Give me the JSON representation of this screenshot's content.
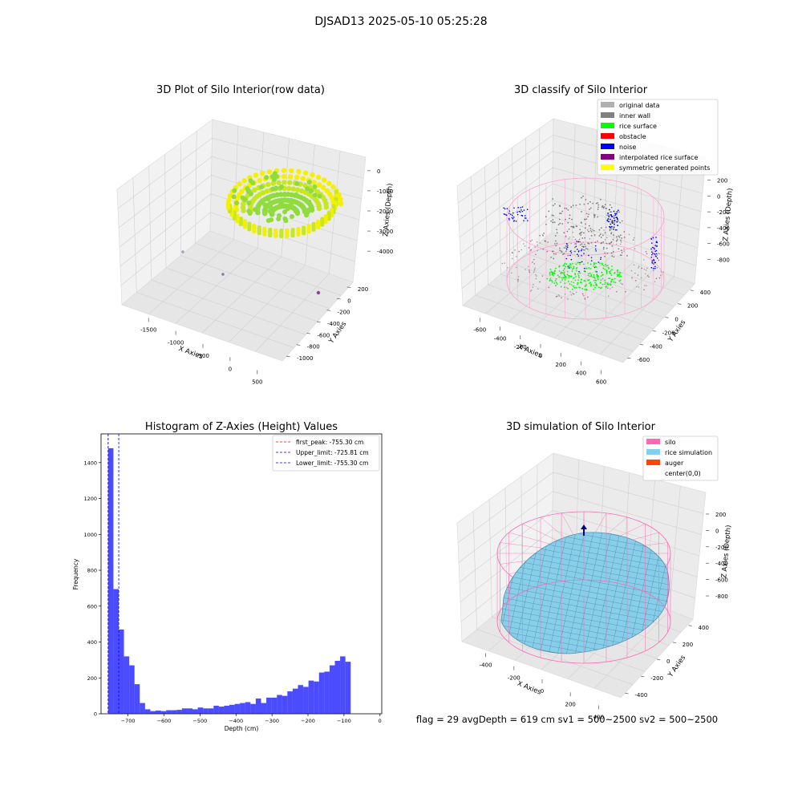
{
  "suptitle": "DJSAD13 2025-05-10 05:25:28",
  "status_line": "flag = 29  avgDepth = 619 cm  sv1 = 500~2500  sv2 = 500~2500",
  "chart_data": [
    {
      "id": "raw",
      "type": "scatter",
      "title": "3D Plot of Silo Interior(row data)",
      "xlabel": "X Axies",
      "ylabel": "Y Axies",
      "zlabel": "Z Axies (Depth)",
      "x_ticks": [
        "-1500",
        "-1000",
        "-500",
        "0",
        "500"
      ],
      "y_ticks": [
        "200",
        "0",
        "-200",
        "-400",
        "-600",
        "-800",
        "-1000"
      ],
      "z_ticks": [
        "0",
        "-1000",
        "-2000",
        "-3000",
        "-4000"
      ],
      "colors": [
        "#f5f000",
        "#8fdc3c",
        "#c7e81f"
      ]
    },
    {
      "id": "classify",
      "type": "scatter",
      "title": "3D classify of Silo Interior",
      "xlabel": "X Axies",
      "ylabel": "Y Axies",
      "zlabel": "Z Axies (Depth)",
      "x_ticks": [
        "-600",
        "-400",
        "-200",
        "0",
        "200",
        "400",
        "600"
      ],
      "y_ticks": [
        "400",
        "200",
        "0",
        "-200",
        "-400",
        "-600"
      ],
      "z_ticks": [
        "200",
        "0",
        "-200",
        "-400",
        "-600",
        "-800"
      ],
      "legend": [
        {
          "label": "original data",
          "color": "#b0b0b0"
        },
        {
          "label": "inner wall",
          "color": "#808080"
        },
        {
          "label": "rice surface",
          "color": "#00ff00"
        },
        {
          "label": "obstacle",
          "color": "#ff0000"
        },
        {
          "label": "noise",
          "color": "#0000ff"
        },
        {
          "label": "interpolated rice surface",
          "color": "#800080"
        },
        {
          "label": "symmetric generated points",
          "color": "#ffff00"
        }
      ]
    },
    {
      "id": "histogram",
      "type": "bar",
      "title": "Histogram of Z-Axies (Height) Values",
      "xlabel": "Depth (cm)",
      "ylabel": "Frequency",
      "xlim": [
        -775,
        5
      ],
      "ylim": [
        0,
        1560
      ],
      "x_ticks": [
        -700,
        -600,
        -500,
        -400,
        -300,
        -200,
        -100,
        0
      ],
      "y_ticks": [
        0,
        200,
        400,
        600,
        800,
        1000,
        1200,
        1400
      ],
      "bin_start": -755.3,
      "bin_width": 14.65,
      "counts": [
        1480,
        695,
        470,
        320,
        270,
        165,
        60,
        25,
        15,
        18,
        15,
        20,
        20,
        22,
        30,
        30,
        25,
        35,
        30,
        30,
        45,
        40,
        45,
        50,
        55,
        60,
        65,
        55,
        85,
        60,
        90,
        90,
        105,
        100,
        125,
        140,
        160,
        150,
        185,
        180,
        230,
        235,
        270,
        295,
        320,
        290
      ],
      "bar_color": "#0000ff",
      "lines": [
        {
          "label": "first_peak: -755.30 cm",
          "value": -755.3,
          "color": "#ff0000"
        },
        {
          "label": "Upper_limit: -725.81 cm",
          "value": -725.81,
          "color": "#0000ff"
        },
        {
          "label": "Lower_limit: -755.30 cm",
          "value": -755.3,
          "color": "#0000ff"
        }
      ]
    },
    {
      "id": "simulation",
      "type": "surface",
      "title": "3D simulation of Silo Interior",
      "xlabel": "X Axies",
      "ylabel": "Y Axies",
      "zlabel": "Z Axies (Depth)",
      "x_ticks": [
        "-400",
        "-200",
        "0",
        "200",
        "400"
      ],
      "y_ticks": [
        "400",
        "200",
        "0",
        "-200",
        "-400"
      ],
      "z_ticks": [
        "200",
        "0",
        "-200",
        "-400",
        "-600",
        "-800"
      ],
      "legend": [
        {
          "label": "silo",
          "color": "#ff69b4"
        },
        {
          "label": "rice simulation",
          "color": "#87ceeb"
        },
        {
          "label": "auger",
          "color": "#ff4500"
        },
        {
          "label": "center(0,0)",
          "color": ""
        }
      ]
    }
  ]
}
